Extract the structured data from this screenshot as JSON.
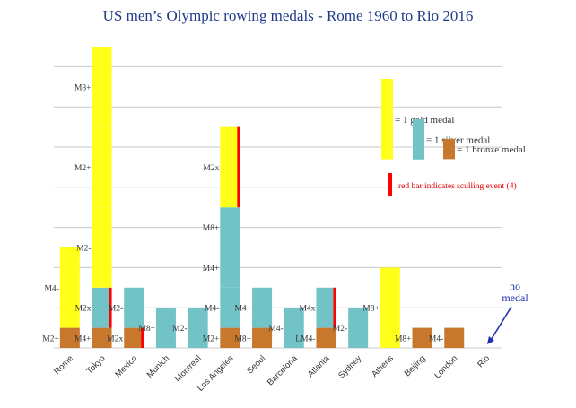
{
  "chart_data": {
    "type": "bar",
    "title": "US men’s Olympic rowing medals - Rome 1960 to Rio 2016",
    "xlabel": "",
    "ylabel": "",
    "ylim": [
      0,
      15
    ],
    "grid": true,
    "colors": {
      "gold": "#ffff1a",
      "silver": "#72c3c8",
      "bronze": "#c8782c",
      "sculling": "#ff0000",
      "grid": "#c8c8c8",
      "title": "#1f3a8a",
      "note": "#1f2fb0"
    },
    "categories": [
      "Rome",
      "Tokyo",
      "Mexico",
      "Munich",
      "Montreal",
      "Los Angeles",
      "Seoul",
      "Barcelona",
      "Atlanta",
      "Sydney",
      "Athens",
      "Beijing",
      "London",
      "Rio"
    ],
    "stacks": [
      {
        "category": "Rome",
        "segments": [
          {
            "medal": "bronze",
            "label": "M2+",
            "value": 1
          },
          {
            "medal": "gold",
            "label": "M4-",
            "value": 4
          }
        ]
      },
      {
        "category": "Tokyo",
        "segments": [
          {
            "medal": "bronze",
            "label": "M4+",
            "value": 1
          },
          {
            "medal": "silver",
            "label": "M2x",
            "value": 2,
            "sculling": true
          },
          {
            "medal": "gold",
            "label": "M2-",
            "value": 4
          },
          {
            "medal": "gold",
            "label": "M2+",
            "value": 4
          },
          {
            "medal": "gold",
            "label": "M8+",
            "value": 4
          }
        ]
      },
      {
        "category": "Mexico",
        "segments": [
          {
            "medal": "bronze",
            "label": "M2x",
            "value": 1,
            "sculling": true
          },
          {
            "medal": "silver",
            "label": "M2-",
            "value": 2
          }
        ]
      },
      {
        "category": "Munich",
        "segments": [
          {
            "medal": "silver",
            "label": "M8+",
            "value": 2
          }
        ]
      },
      {
        "category": "Montreal",
        "segments": [
          {
            "medal": "silver",
            "label": "M2-",
            "value": 2
          }
        ]
      },
      {
        "category": "Los Angeles",
        "segments": [
          {
            "medal": "bronze",
            "label": "M2+",
            "value": 1
          },
          {
            "medal": "silver",
            "label": "M4-",
            "value": 2
          },
          {
            "medal": "silver",
            "label": "M4+",
            "value": 2
          },
          {
            "medal": "silver",
            "label": "M8+",
            "value": 2
          },
          {
            "medal": "gold",
            "label": "M2x",
            "value": 4,
            "sculling": true
          }
        ]
      },
      {
        "category": "Seoul",
        "segments": [
          {
            "medal": "bronze",
            "label": "M8+",
            "value": 1
          },
          {
            "medal": "silver",
            "label": "M4+",
            "value": 2
          }
        ]
      },
      {
        "category": "Barcelona",
        "segments": [
          {
            "medal": "silver",
            "label": "M4-",
            "value": 2
          }
        ]
      },
      {
        "category": "Atlanta",
        "segments": [
          {
            "medal": "bronze",
            "label": "LM4-",
            "value": 1
          },
          {
            "medal": "silver",
            "label": "M4x",
            "value": 2,
            "sculling": true
          }
        ]
      },
      {
        "category": "Sydney",
        "segments": [
          {
            "medal": "silver",
            "label": "M2-",
            "value": 2
          }
        ]
      },
      {
        "category": "Athens",
        "segments": [
          {
            "medal": "gold",
            "label": "M8+",
            "value": 4
          }
        ]
      },
      {
        "category": "Beijing",
        "segments": [
          {
            "medal": "bronze",
            "label": "M8+",
            "value": 1
          }
        ]
      },
      {
        "category": "London",
        "segments": [
          {
            "medal": "bronze",
            "label": "M4-",
            "value": 1
          }
        ]
      },
      {
        "category": "Rio",
        "segments": []
      }
    ],
    "legend": [
      {
        "medal": "gold",
        "text": "= 1 gold medal",
        "value": 4
      },
      {
        "medal": "silver",
        "text": "= 1 silver medal",
        "value": 2
      },
      {
        "medal": "bronze",
        "text": "= 1 bronze medal",
        "value": 1
      }
    ],
    "legend_note": "red bar indicates sculling event (4)",
    "annotation": {
      "category": "Rio",
      "text_line1": "no",
      "text_line2": "medal"
    }
  }
}
